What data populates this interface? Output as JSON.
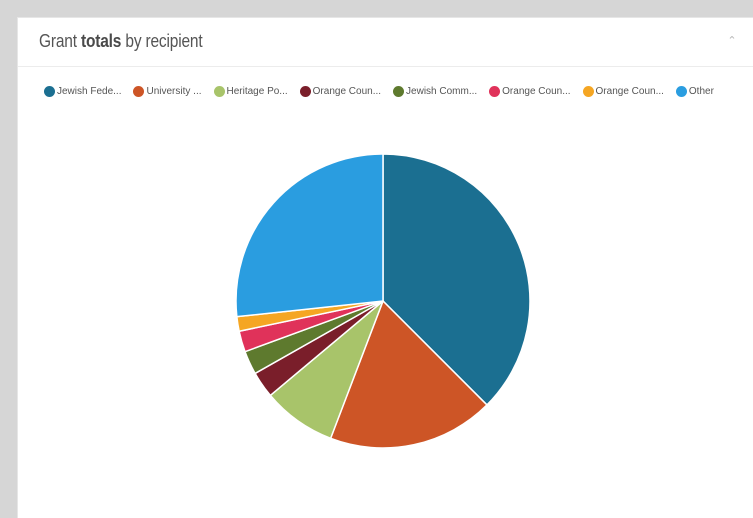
{
  "title_prefix": "Grant ",
  "title_bold": "totals",
  "title_suffix": " by recipient",
  "collapse_icon": "chevron-up-icon",
  "legend_items": [
    {
      "label": "Jewish Fede...",
      "color": "#1b6f91"
    },
    {
      "label": "University ...",
      "color": "#cd5526"
    },
    {
      "label": "Heritage Po...",
      "color": "#a8c46a"
    },
    {
      "label": "Orange Coun...",
      "color": "#7a1e2a"
    },
    {
      "label": "Jewish Comm...",
      "color": "#5e7a2e"
    },
    {
      "label": "Orange Coun...",
      "color": "#e0325a"
    },
    {
      "label": "Orange Coun...",
      "color": "#f5a623"
    },
    {
      "label": "Other",
      "color": "#2a9de0"
    }
  ],
  "chart_data": {
    "type": "pie",
    "title": "Grant totals by recipient",
    "categories": [
      "Jewish Fede...",
      "University ...",
      "Heritage Po...",
      "Orange Coun...",
      "Jewish Comm...",
      "Orange Coun...",
      "Orange Coun...",
      "Other"
    ],
    "values": [
      37.5,
      18.3,
      8.1,
      2.9,
      2.6,
      2.3,
      1.6,
      26.7
    ],
    "colors": [
      "#1b6f91",
      "#cd5526",
      "#a8c46a",
      "#7a1e2a",
      "#5e7a2e",
      "#e0325a",
      "#f5a623",
      "#2a9de0"
    ],
    "legend_position": "top"
  }
}
